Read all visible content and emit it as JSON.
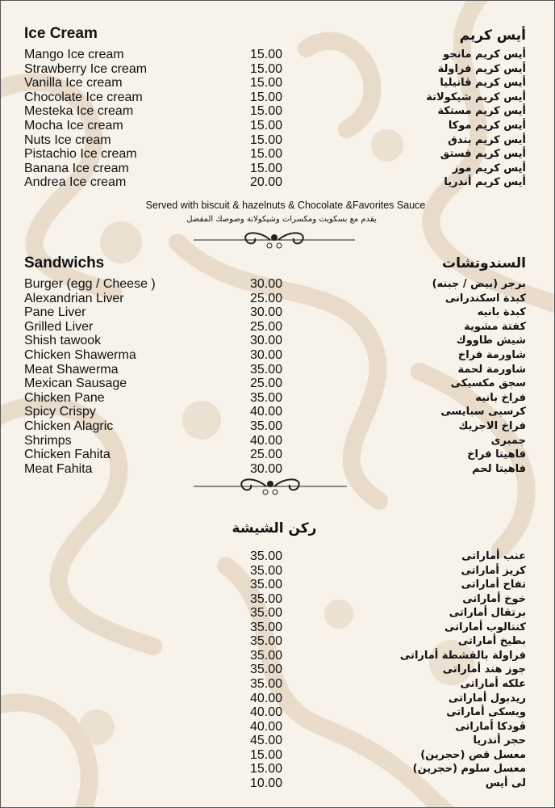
{
  "ice_cream": {
    "title_en": "Ice Cream",
    "title_ar": "أيس كريم",
    "items": [
      {
        "en": "Mango Ice cream",
        "price": "15.00",
        "ar": "أيس كريم مانجو"
      },
      {
        "en": "Strawberry Ice cream",
        "price": "15.00",
        "ar": "أيس كريم فراولة"
      },
      {
        "en": "Vanilla Ice cream",
        "price": "15.00",
        "ar": "أيس كريم ڤانيليا"
      },
      {
        "en": "Chocolate Ice cream",
        "price": "15.00",
        "ar": "أيس كريم شيكولاتة"
      },
      {
        "en": "Mesteka Ice cream",
        "price": "15.00",
        "ar": "أيس كريم مستكة"
      },
      {
        "en": "Mocha Ice cream",
        "price": "15.00",
        "ar": "أيس كريم موكا"
      },
      {
        "en": "Nuts Ice cream",
        "price": "15.00",
        "ar": "أيس كريم بندق"
      },
      {
        "en": "Pistachio Ice cream",
        "price": "15.00",
        "ar": "أيس كريم فستق"
      },
      {
        "en": "Banana Ice cream",
        "price": "15.00",
        "ar": "أيس كريم موز"
      },
      {
        "en": "Andrea Ice cream",
        "price": "20.00",
        "ar": "أيس كريم أندريا"
      }
    ],
    "note_en": "Served with biscuit & hazelnuts & Chocolate &Favorites Sauce",
    "note_ar": "يقدم مع بسكويت ومكسرات وشيكولاتة وصوصك المفضل"
  },
  "sandwiches": {
    "title_en": "Sandwichs",
    "title_ar": "السندوتشات",
    "items": [
      {
        "en": "Burger (egg / Cheese )",
        "price": "30.00",
        "ar": "برجر (بيض / جبنه)"
      },
      {
        "en": "Alexandrian Liver",
        "price": "25.00",
        "ar": "كبدة اسكندرانى"
      },
      {
        "en": "Pane Liver",
        "price": "30.00",
        "ar": "كبدة بانيه"
      },
      {
        "en": "Grilled Liver",
        "price": "25.00",
        "ar": "كفتة مشوية"
      },
      {
        "en": "Shish tawook",
        "price": "30.00",
        "ar": "شيش طاووك"
      },
      {
        "en": "Chicken Shawerma",
        "price": "30.00",
        "ar": "شاورمة فراخ"
      },
      {
        "en": "Meat Shawerma",
        "price": "35.00",
        "ar": "شاورمة لحمة"
      },
      {
        "en": "Mexican Sausage",
        "price": "25.00",
        "ar": "سجق مكسيكى"
      },
      {
        "en": "Chicken Pane",
        "price": "35.00",
        "ar": "فراخ بانيه"
      },
      {
        "en": "Spicy Crispy",
        "price": "40.00",
        "ar": "كرسبى سبايسى"
      },
      {
        "en": "Chicken Alagric",
        "price": "35.00",
        "ar": "فراخ الاجريك"
      },
      {
        "en": "Shrimps",
        "price": "40.00",
        "ar": "جمبرى"
      },
      {
        "en": "Chicken Fahita",
        "price": "25.00",
        "ar": "فاهيتا فراخ"
      },
      {
        "en": "Meat Fahita",
        "price": "30.00",
        "ar": "فاهيتا لحم"
      }
    ]
  },
  "shisha": {
    "title_ar": "ركن الشيشة",
    "items": [
      {
        "price": "35.00",
        "ar": "عنب أماراتى"
      },
      {
        "price": "35.00",
        "ar": "كريز أماراتى"
      },
      {
        "price": "35.00",
        "ar": "تفاح أماراتى"
      },
      {
        "price": "35.00",
        "ar": "خوخ أماراتى"
      },
      {
        "price": "35.00",
        "ar": "برتقال أماراتى"
      },
      {
        "price": "35.00",
        "ar": "كنتالوب أماراتى"
      },
      {
        "price": "35.00",
        "ar": "بطيخ أماراتى"
      },
      {
        "price": "35.00",
        "ar": "فراولة بالقشطة أماراتى"
      },
      {
        "price": "35.00",
        "ar": "جوز هند أماراتى"
      },
      {
        "price": "35.00",
        "ar": "علكه أماراتى"
      },
      {
        "price": "40.00",
        "ar": "ريدبول أماراتى"
      },
      {
        "price": "40.00",
        "ar": "ويسكى أماراتى"
      },
      {
        "price": "40.00",
        "ar": "ڤودكا أماراتى"
      },
      {
        "price": "45.00",
        "ar": "حجر أندريا"
      },
      {
        "price": "15.00",
        "ar": "معسل قص (حجرين)"
      },
      {
        "price": "15.00",
        "ar": "معسل سلوم (حجرين)"
      },
      {
        "price": "10.00",
        "ar": "لى أيس"
      }
    ]
  },
  "colors": {
    "background": "#f7f2ea",
    "damask": "#e6d8c4",
    "text": "#111111"
  }
}
